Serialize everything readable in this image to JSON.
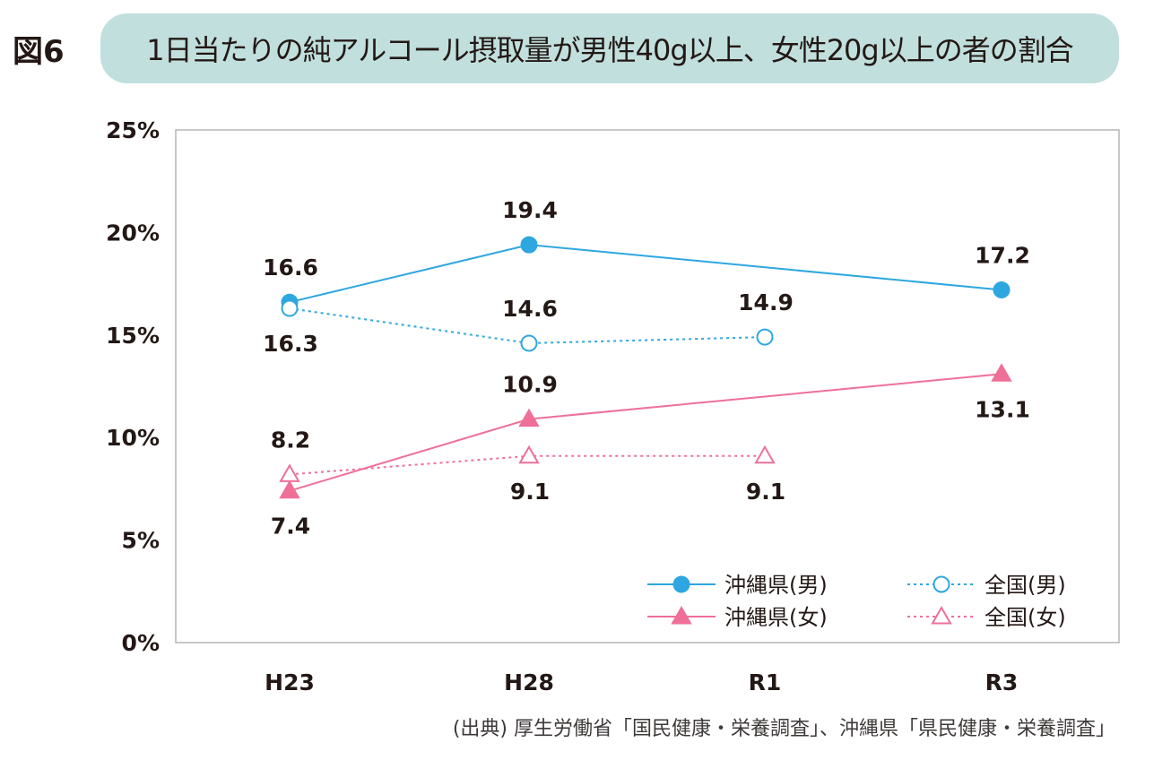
{
  "figure_label": "図6",
  "chart_data": {
    "type": "line",
    "title": "1日当たりの純アルコール摂取量が男性40g以上、女性20g以上の者の割合",
    "categories": [
      "H23",
      "H28",
      "R1",
      "R3"
    ],
    "ylim": [
      0,
      25
    ],
    "yticks": [
      0,
      5,
      10,
      15,
      20,
      25
    ],
    "ytick_labels": [
      "0%",
      "5%",
      "10%",
      "15%",
      "20%",
      "25%"
    ],
    "grid": false,
    "legend_placement": "bottom-right",
    "series": [
      {
        "name": "沖縄県(男)",
        "values": [
          16.6,
          19.4,
          null,
          17.2
        ],
        "color": "#2ea7e0",
        "line": "solid",
        "marker": "filled-circle"
      },
      {
        "name": "全国(男)",
        "values": [
          16.3,
          14.6,
          14.9,
          null
        ],
        "color": "#2ea7e0",
        "line": "dotted",
        "marker": "open-circle"
      },
      {
        "name": "沖縄県(女)",
        "values": [
          7.4,
          10.9,
          null,
          13.1
        ],
        "color": "#ee7098",
        "line": "solid",
        "marker": "filled-triangle"
      },
      {
        "name": "全国(女)",
        "values": [
          8.2,
          9.1,
          9.1,
          null
        ],
        "color": "#ee7098",
        "line": "dotted",
        "marker": "open-triangle"
      }
    ]
  },
  "source": "(出典) 厚生労働省「国民健康・栄養調査」、沖縄県「県民健康・栄養調査」"
}
